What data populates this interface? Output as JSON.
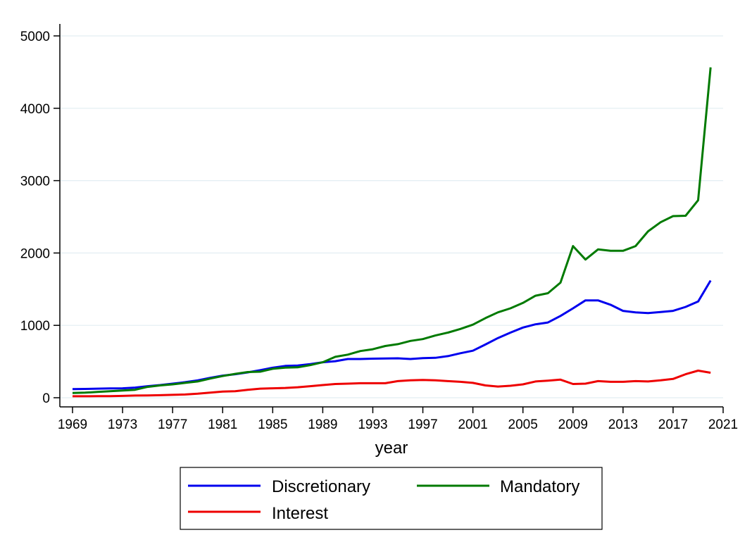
{
  "chart_data": {
    "type": "line",
    "xlabel": "year",
    "ylabel": "",
    "title": "",
    "xlim": [
      1969,
      2021
    ],
    "ylim": [
      0,
      5000
    ],
    "xticks": [
      1969,
      1973,
      1977,
      1981,
      1985,
      1989,
      1993,
      1997,
      2001,
      2005,
      2009,
      2013,
      2017,
      2021
    ],
    "yticks": [
      0,
      1000,
      2000,
      3000,
      4000,
      5000
    ],
    "grid": "horizontal",
    "legend_position": "bottom",
    "x": [
      1969,
      1970,
      1971,
      1972,
      1973,
      1974,
      1975,
      1976,
      1977,
      1978,
      1979,
      1980,
      1981,
      1982,
      1983,
      1984,
      1985,
      1986,
      1987,
      1988,
      1989,
      1990,
      1991,
      1992,
      1993,
      1994,
      1995,
      1996,
      1997,
      1998,
      1999,
      2000,
      2001,
      2002,
      2003,
      2004,
      2005,
      2006,
      2007,
      2008,
      2009,
      2010,
      2011,
      2012,
      2013,
      2014,
      2015,
      2016,
      2017,
      2018,
      2019,
      2020
    ],
    "series": [
      {
        "name": "Discretionary",
        "color": "#0000ee",
        "values": [
          120,
          122,
          125,
          128,
          130,
          140,
          160,
          175,
          195,
          215,
          240,
          275,
          305,
          325,
          350,
          380,
          415,
          440,
          445,
          465,
          490,
          505,
          535,
          535,
          540,
          542,
          545,
          535,
          548,
          552,
          575,
          615,
          650,
          735,
          825,
          900,
          970,
          1015,
          1040,
          1130,
          1235,
          1345,
          1345,
          1285,
          1200,
          1180,
          1170,
          1185,
          1200,
          1255,
          1330,
          1620
        ]
      },
      {
        "name": "Mandatory",
        "color": "#007a00",
        "values": [
          65,
          70,
          80,
          90,
          100,
          110,
          150,
          170,
          185,
          205,
          225,
          265,
          300,
          330,
          355,
          360,
          400,
          415,
          420,
          450,
          490,
          565,
          595,
          645,
          670,
          715,
          740,
          785,
          810,
          860,
          900,
          950,
          1010,
          1100,
          1180,
          1235,
          1310,
          1410,
          1445,
          1590,
          2095,
          1910,
          2050,
          2030,
          2030,
          2095,
          2300,
          2425,
          2510,
          2515,
          2730,
          4565
        ]
      },
      {
        "name": "Interest",
        "color": "#ee0000",
        "values": [
          20,
          20,
          21,
          22,
          25,
          30,
          32,
          35,
          40,
          45,
          55,
          70,
          85,
          90,
          110,
          125,
          130,
          135,
          145,
          160,
          175,
          190,
          195,
          200,
          200,
          200,
          230,
          240,
          245,
          240,
          230,
          220,
          205,
          170,
          155,
          165,
          185,
          225,
          235,
          250,
          190,
          195,
          230,
          220,
          220,
          230,
          225,
          240,
          260,
          325,
          375,
          345
        ]
      }
    ]
  }
}
